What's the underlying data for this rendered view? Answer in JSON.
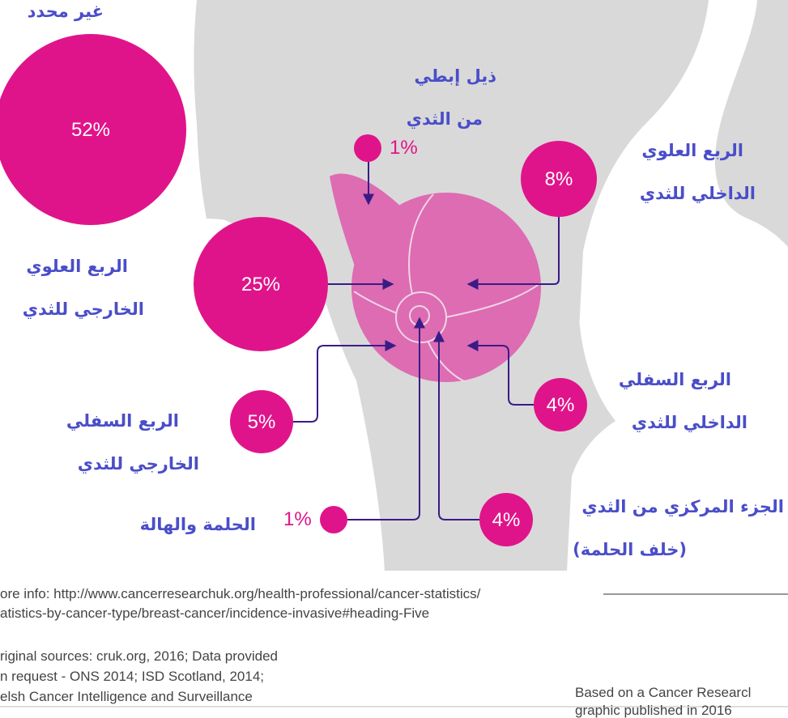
{
  "colors": {
    "magenta": "#e0148a",
    "breast_pink": "#dd6cb3",
    "body_grey": "#d9d9d9",
    "label_blue": "#4a4ec8",
    "arrow": "#3a1b86"
  },
  "regions": {
    "unspecified": {
      "label": "غير محدد",
      "percent": "52%"
    },
    "upper_outer": {
      "label_line1": "الربع العلوي",
      "label_line2": "الخارجي للثدي",
      "percent": "25%"
    },
    "axillary": {
      "label_line1": "ذيل إبطي",
      "label_line2": "من الثدي",
      "percent": "1%"
    },
    "upper_inner": {
      "label_line1": "الربع العلوي",
      "label_line2": "الداخلي للثدي",
      "percent": "8%"
    },
    "lower_outer": {
      "label_line1": "الربع السفلي",
      "label_line2": "الخارجي للثدي",
      "percent": "5%"
    },
    "lower_inner": {
      "label_line1": "الربع السفلي",
      "label_line2": "الداخلي للثدي",
      "percent": "4%"
    },
    "nipple": {
      "label": "الحلمة والهالة",
      "percent": "1%"
    },
    "central": {
      "label_line1": "الجزء المركزي من الثدي",
      "label_line2": "(خلف الحلمة)",
      "percent": "4%"
    }
  },
  "footer": {
    "more_info_1": "ore info: http://www.cancerresearchuk.org/health-professional/cancer-statistics/",
    "more_info_2": "atistics-by-cancer-type/breast-cancer/incidence-invasive#heading-Five",
    "sources_1": "riginal sources: cruk.org, 2016; Data provided",
    "sources_2": "n request - ONS 2014; ISD Scotland, 2014;",
    "sources_3": "elsh Cancer Intelligence and Surveillance",
    "based_on_1": "Based on a Cancer Researcl",
    "based_on_2": "graphic published in 2016"
  }
}
